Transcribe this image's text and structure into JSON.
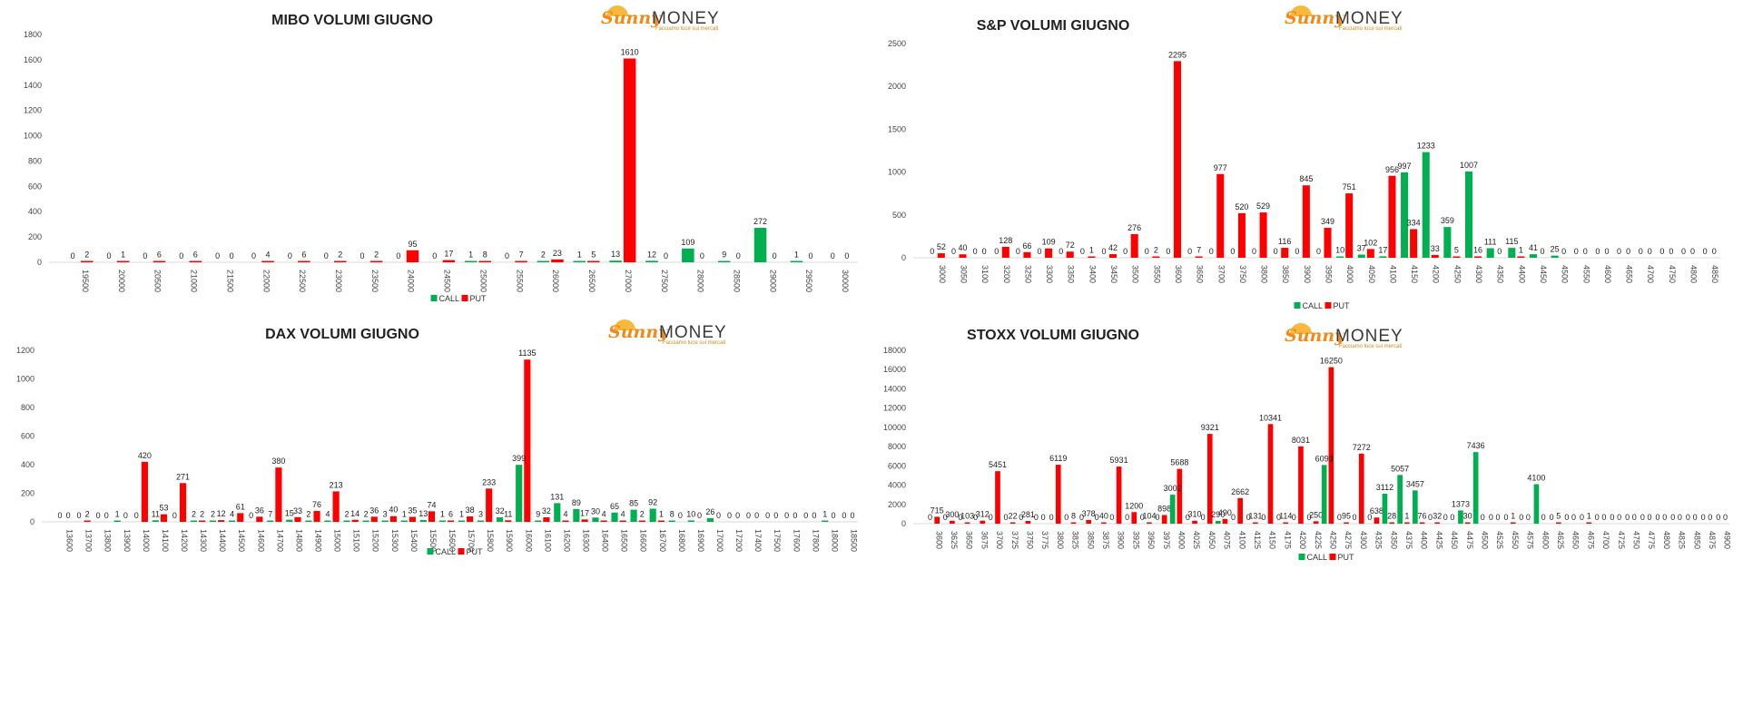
{
  "chart_data": [
    {
      "type": "bar",
      "title": "MIBO VOLUMI GIUGNO",
      "categories": [
        "19500",
        "20000",
        "20500",
        "21000",
        "21500",
        "22000",
        "22500",
        "23000",
        "23500",
        "24000",
        "24500",
        "25000",
        "25500",
        "26000",
        "26500",
        "27000",
        "27500",
        "28000",
        "28500",
        "29000",
        "29500",
        "30000"
      ],
      "series": [
        {
          "name": "CALL",
          "color": "#00b050",
          "values": [
            0,
            0,
            0,
            0,
            0,
            0,
            0,
            0,
            0,
            0,
            0,
            1,
            0,
            2,
            1,
            13,
            12,
            109,
            9,
            272,
            1,
            0
          ]
        },
        {
          "name": "PUT",
          "color": "#ff0000",
          "values": [
            2,
            1,
            6,
            6,
            0,
            4,
            6,
            2,
            2,
            95,
            17,
            8,
            7,
            23,
            5,
            1610,
            0,
            0,
            0,
            0,
            0,
            0
          ]
        }
      ],
      "ylim": [
        0,
        1800
      ],
      "yticks": [
        "0",
        "200",
        "400",
        "600",
        "800",
        "1000",
        "1200",
        "1400",
        "1600",
        "1800"
      ],
      "legend": "bottom",
      "brand": {
        "script": "Sunny",
        "word": "MONEY",
        "tagline": "Facciamo luce sui mercati"
      }
    },
    {
      "type": "bar",
      "title": "S&P VOLUMI GIUGNO",
      "categories": [
        "3000",
        "3050",
        "3100",
        "3200",
        "3250",
        "3300",
        "3350",
        "3400",
        "3450",
        "3500",
        "3550",
        "3600",
        "3650",
        "3700",
        "3750",
        "3800",
        "3850",
        "3900",
        "3950",
        "4000",
        "4050",
        "4100",
        "4150",
        "4200",
        "4250",
        "4300",
        "4350",
        "4400",
        "4450",
        "4500",
        "4550",
        "4600",
        "4650",
        "4700",
        "4750",
        "4800",
        "4850"
      ],
      "series": [
        {
          "name": "CALL",
          "color": "#00b050",
          "values": [
            0,
            0,
            0,
            0,
            0,
            0,
            0,
            0,
            0,
            0,
            0,
            0,
            0,
            0,
            0,
            0,
            0,
            0,
            0,
            10,
            37,
            17,
            997,
            1233,
            359,
            1007,
            111,
            115,
            41,
            25,
            0,
            0,
            0,
            0,
            0,
            0,
            0
          ]
        },
        {
          "name": "PUT",
          "color": "#ff0000",
          "values": [
            52,
            40,
            0,
            128,
            66,
            109,
            72,
            1,
            42,
            276,
            2,
            2295,
            7,
            977,
            520,
            529,
            116,
            845,
            349,
            751,
            102,
            956,
            334,
            33,
            5,
            16,
            0,
            1,
            0,
            0,
            0,
            0,
            0,
            0,
            0,
            0,
            0
          ]
        }
      ],
      "ylim": [
        0,
        2500
      ],
      "yticks": [
        "0",
        "500",
        "1000",
        "1500",
        "2000",
        "2500"
      ],
      "legend": "bottom",
      "brand": {
        "script": "Sunny",
        "word": "MONEY",
        "tagline": "Facciamo luce sui mercati"
      }
    },
    {
      "type": "bar",
      "title": "DAX VOLUMI GIUGNO",
      "categories": [
        "13600",
        "13700",
        "13800",
        "13900",
        "14000",
        "14100",
        "14200",
        "14300",
        "14400",
        "14500",
        "14600",
        "14700",
        "14800",
        "14900",
        "15000",
        "15100",
        "15200",
        "15300",
        "15400",
        "15500",
        "15600",
        "15700",
        "15800",
        "15900",
        "16000",
        "16100",
        "16200",
        "16300",
        "16400",
        "16500",
        "16600",
        "16700",
        "16800",
        "16900",
        "17000",
        "17200",
        "17400",
        "17500",
        "17600",
        "17800",
        "18000",
        "18500"
      ],
      "series": [
        {
          "name": "CALL",
          "color": "#00b050",
          "values": [
            0,
            0,
            0,
            1,
            0,
            11,
            0,
            2,
            2,
            4,
            0,
            7,
            15,
            2,
            4,
            2,
            2,
            3,
            1,
            13,
            1,
            1,
            3,
            32,
            399,
            9,
            131,
            89,
            30,
            65,
            85,
            92,
            8,
            10,
            26,
            0,
            0,
            0,
            0,
            0,
            1,
            0
          ]
        },
        {
          "name": "PUT",
          "color": "#ff0000",
          "values": [
            0,
            2,
            0,
            0,
            420,
            53,
            271,
            2,
            12,
            61,
            36,
            380,
            33,
            76,
            213,
            14,
            36,
            40,
            35,
            74,
            6,
            38,
            233,
            11,
            1135,
            32,
            4,
            17,
            4,
            4,
            2,
            1,
            0,
            0,
            0,
            0,
            0,
            0,
            0,
            0,
            0,
            0
          ]
        }
      ],
      "ylim": [
        0,
        1200
      ],
      "yticks": [
        "0",
        "200",
        "400",
        "600",
        "800",
        "1000",
        "1200"
      ],
      "legend": "bottom",
      "brand": {
        "script": "Sunny",
        "word": "MONEY",
        "tagline": "Facciamo luce sui mercati"
      }
    },
    {
      "type": "bar",
      "title": "STOXX VOLUMI GIUGNO",
      "categories": [
        "3600",
        "3625",
        "3650",
        "3675",
        "3700",
        "3725",
        "3750",
        "3775",
        "3800",
        "3825",
        "3850",
        "3875",
        "3900",
        "3925",
        "3950",
        "3975",
        "4000",
        "4025",
        "4050",
        "4075",
        "4100",
        "4125",
        "4150",
        "4175",
        "4200",
        "4225",
        "4250",
        "4275",
        "4300",
        "4325",
        "4350",
        "4375",
        "4400",
        "4425",
        "4450",
        "4475",
        "4500",
        "4525",
        "4550",
        "4575",
        "4600",
        "4625",
        "4650",
        "4675",
        "4700",
        "4725",
        "4750",
        "4775",
        "4800",
        "4825",
        "4850",
        "4875",
        "4900"
      ],
      "series": [
        {
          "name": "CALL",
          "color": "#00b050",
          "values": [
            0,
            0,
            0,
            0,
            0,
            0,
            0,
            0,
            0,
            0,
            0,
            0,
            0,
            0,
            0,
            0,
            3002,
            0,
            0,
            290,
            0,
            0,
            0,
            0,
            0,
            0,
            6093,
            0,
            0,
            0,
            3112,
            5057,
            3457,
            0,
            0,
            1373,
            7436,
            0,
            0,
            0,
            4100,
            0,
            0,
            0,
            0,
            0,
            0,
            0,
            0,
            0,
            0,
            0,
            0
          ]
        },
        {
          "name": "PUT",
          "color": "#ff0000",
          "values": [
            715,
            300,
            103,
            312,
            5451,
            22,
            281,
            0,
            6119,
            8,
            378,
            40,
            5931,
            1200,
            104,
            898,
            5688,
            310,
            9321,
            490,
            2662,
            131,
            10341,
            114,
            8031,
            250,
            16250,
            95,
            7272,
            638,
            28,
            1,
            76,
            32,
            0,
            30,
            0,
            0,
            1,
            0,
            0,
            5,
            0,
            1,
            0,
            0,
            0,
            0,
            0,
            0,
            0,
            0,
            0
          ]
        }
      ],
      "ylim": [
        0,
        18000
      ],
      "yticks": [
        "0",
        "2000",
        "4000",
        "6000",
        "8000",
        "10000",
        "12000",
        "14000",
        "16000",
        "18000"
      ],
      "legend": "bottom",
      "brand": {
        "script": "Sunny",
        "word": "MONEY",
        "tagline": "Facciamo luce sui mercati"
      }
    }
  ]
}
